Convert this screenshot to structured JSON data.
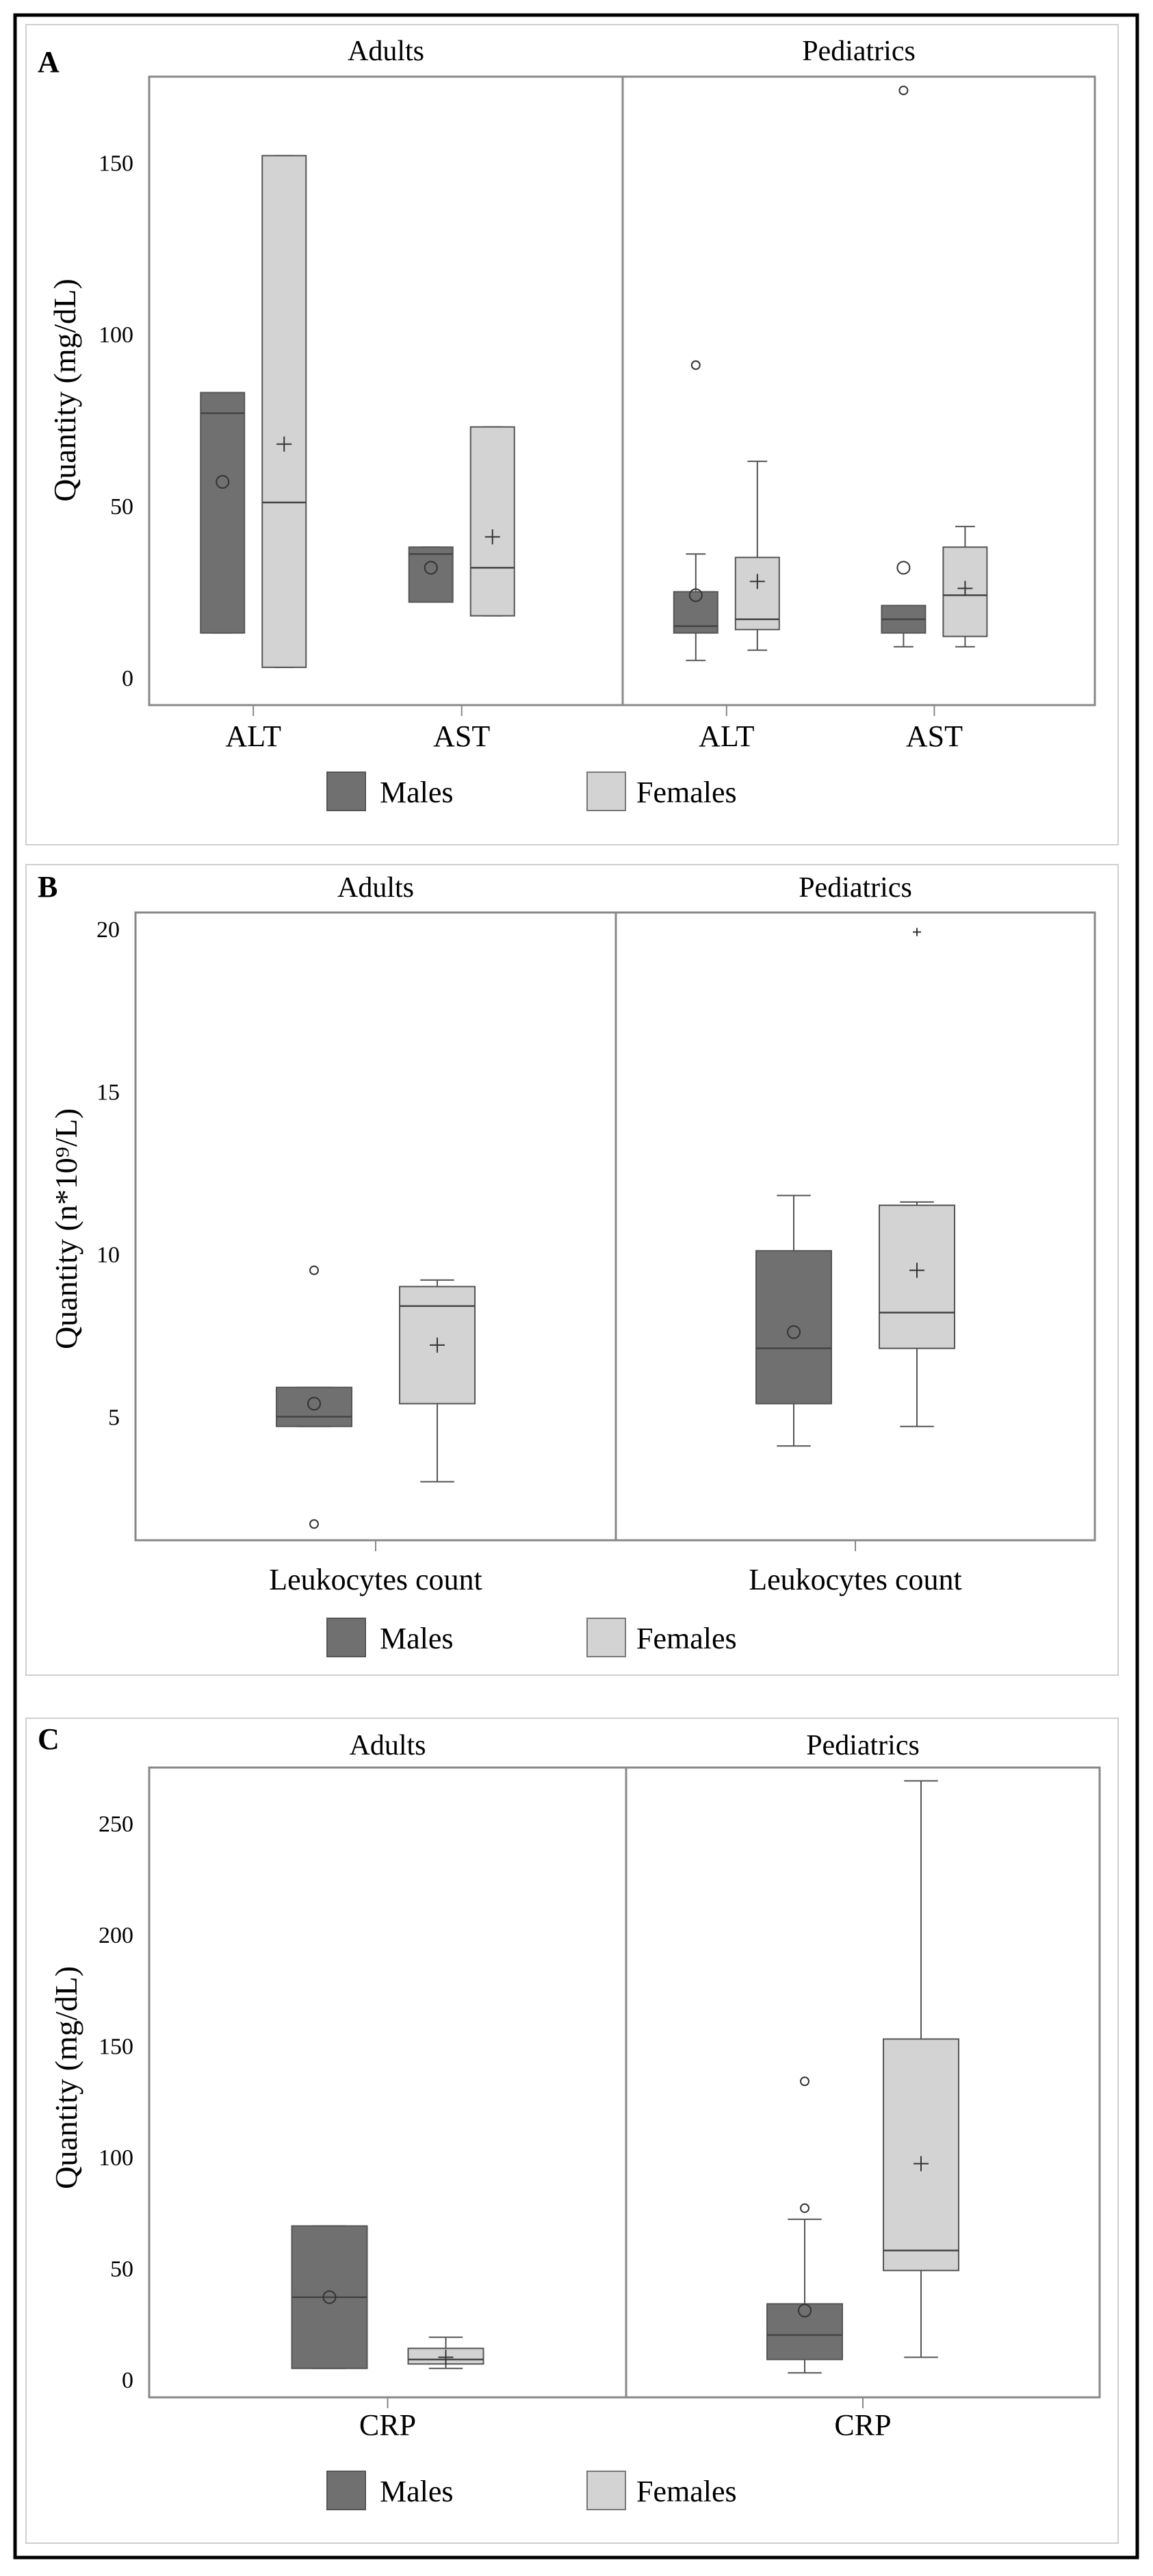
{
  "colors": {
    "males_fill": "#707070",
    "females_fill": "#d3d3d3",
    "box_stroke": "#555555",
    "frame_stroke": "#888888",
    "outer_border": "#000000"
  },
  "legend": {
    "males": "Males",
    "females": "Females"
  },
  "chart_data": [
    {
      "type": "box",
      "panel_letter": "A",
      "ylabel": "Quantity (mg/dL)",
      "ylim": [
        -8,
        175
      ],
      "yticks": [
        0,
        50,
        100,
        150
      ],
      "facets": [
        {
          "title": "Adults",
          "categories": [
            "ALT",
            "AST"
          ],
          "boxes": [
            {
              "category": "ALT",
              "group": "males",
              "min": 13,
              "q1": 13,
              "median": 77,
              "q3": 83,
              "max": 83,
              "mean": 57,
              "outliers": []
            },
            {
              "category": "ALT",
              "group": "females",
              "min": 3,
              "q1": 3,
              "median": 51,
              "q3": 152,
              "max": 152,
              "mean": 68,
              "outliers": []
            },
            {
              "category": "AST",
              "group": "males",
              "min": 22,
              "q1": 22,
              "median": 36,
              "q3": 38,
              "max": 38,
              "mean": 32,
              "outliers": []
            },
            {
              "category": "AST",
              "group": "females",
              "min": 18,
              "q1": 18,
              "median": 32,
              "q3": 73,
              "max": 73,
              "mean": 41,
              "outliers": []
            }
          ]
        },
        {
          "title": "Pediatrics",
          "categories": [
            "ALT",
            "AST"
          ],
          "boxes": [
            {
              "category": "ALT",
              "group": "males",
              "min": 5,
              "q1": 13,
              "median": 15,
              "q3": 25,
              "max": 36,
              "mean": 24,
              "outliers": [
                91
              ]
            },
            {
              "category": "ALT",
              "group": "females",
              "min": 8,
              "q1": 14,
              "median": 17,
              "q3": 35,
              "max": 63,
              "mean": 28,
              "outliers": []
            },
            {
              "category": "AST",
              "group": "males",
              "min": 9,
              "q1": 13,
              "median": 17,
              "q3": 21,
              "max": 21,
              "mean": 32,
              "outliers": [
                171
              ]
            },
            {
              "category": "AST",
              "group": "females",
              "min": 9,
              "q1": 12,
              "median": 24,
              "q3": 38,
              "max": 44,
              "mean": 26,
              "outliers": []
            }
          ]
        }
      ]
    },
    {
      "type": "box",
      "panel_letter": "B",
      "ylabel": "Quantity (n*10⁹/L)",
      "ylim": [
        1.2,
        20.5
      ],
      "yticks": [
        5,
        10,
        15,
        20
      ],
      "facets": [
        {
          "title": "Adults",
          "categories": [
            "Leukocytes count"
          ],
          "boxes": [
            {
              "category": "Leukocytes count",
              "group": "males",
              "min": 4.7,
              "q1": 4.7,
              "median": 5.0,
              "q3": 5.9,
              "max": 5.9,
              "mean": 5.4,
              "outliers": [
                9.5,
                1.7
              ]
            },
            {
              "category": "Leukocytes count",
              "group": "females",
              "min": 3.0,
              "q1": 5.4,
              "median": 8.4,
              "q3": 9.0,
              "max": 9.2,
              "mean": 7.2,
              "outliers": []
            }
          ]
        },
        {
          "title": "Pediatrics",
          "categories": [
            "Leukocytes count"
          ],
          "boxes": [
            {
              "category": "Leukocytes count",
              "group": "males",
              "min": 4.1,
              "q1": 5.4,
              "median": 7.1,
              "q3": 10.1,
              "max": 11.8,
              "mean": 7.6,
              "outliers": []
            },
            {
              "category": "Leukocytes count",
              "group": "females",
              "min": 4.7,
              "q1": 7.1,
              "median": 8.2,
              "q3": 11.5,
              "max": 11.6,
              "mean": 9.5,
              "outliers": [
                19.9
              ]
            }
          ]
        }
      ]
    },
    {
      "type": "box",
      "panel_letter": "C",
      "ylabel": "Quantity (mg/dL)",
      "ylim": [
        -8,
        275
      ],
      "yticks": [
        0,
        50,
        100,
        150,
        200,
        250
      ],
      "facets": [
        {
          "title": "Adults",
          "categories": [
            "CRP"
          ],
          "boxes": [
            {
              "category": "CRP",
              "group": "males",
              "min": 5,
              "q1": 5,
              "median": 37,
              "q3": 69,
              "max": 69,
              "mean": 37,
              "outliers": []
            },
            {
              "category": "CRP",
              "group": "females",
              "min": 5,
              "q1": 7,
              "median": 9,
              "q3": 14,
              "max": 19,
              "mean": 10,
              "outliers": []
            }
          ]
        },
        {
          "title": "Pediatrics",
          "categories": [
            "CRP"
          ],
          "boxes": [
            {
              "category": "CRP",
              "group": "males",
              "min": 3,
              "q1": 9,
              "median": 20,
              "q3": 34,
              "max": 72,
              "mean": 31,
              "outliers": [
                134,
                77
              ]
            },
            {
              "category": "CRP",
              "group": "females",
              "min": 10,
              "q1": 49,
              "median": 58,
              "q3": 153,
              "max": 269,
              "mean": 97,
              "outliers": []
            }
          ]
        }
      ]
    }
  ]
}
